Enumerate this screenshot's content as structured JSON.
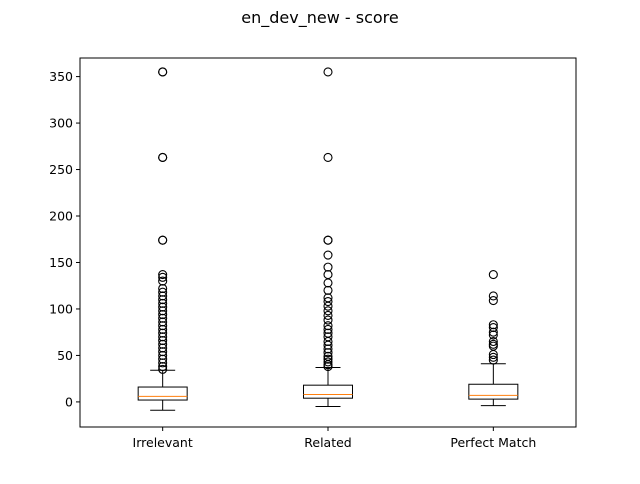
{
  "chart_data": {
    "type": "box",
    "title": "en_dev_new - score",
    "xlabel": "",
    "ylabel": "",
    "ylim": [
      -27,
      370
    ],
    "yticks": [
      0,
      50,
      100,
      150,
      200,
      250,
      300,
      350
    ],
    "grid": false,
    "colors": {
      "box": "#000000",
      "median": "#ff7f0e",
      "background": "#ffffff"
    },
    "categories": [
      "Irrelevant",
      "Related",
      "Perfect Match"
    ],
    "boxes": [
      {
        "category": "Irrelevant",
        "whisker_low": -9,
        "q1": 2,
        "median": 6,
        "q3": 16,
        "whisker_high": 34,
        "outliers": [
          355,
          355,
          263,
          263,
          174,
          174,
          137,
          134,
          130,
          122,
          118,
          114,
          110,
          106,
          102,
          98,
          94,
          90,
          86,
          82,
          78,
          74,
          70,
          66,
          62,
          58,
          54,
          50,
          46,
          42,
          38,
          35
        ]
      },
      {
        "category": "Related",
        "whisker_low": -5,
        "q1": 4,
        "median": 8,
        "q3": 18,
        "whisker_high": 37,
        "outliers": [
          355,
          263,
          174,
          174,
          158,
          145,
          137,
          128,
          120,
          112,
          108,
          103,
          98,
          93,
          88,
          82,
          78,
          74,
          70,
          65,
          61,
          57,
          53,
          49,
          46,
          43,
          40,
          38
        ]
      },
      {
        "category": "Perfect Match",
        "whisker_low": -4,
        "q1": 3,
        "median": 7,
        "q3": 19,
        "whisker_high": 41,
        "outliers": [
          137,
          114,
          109,
          83,
          80,
          75,
          72,
          65,
          62,
          60,
          51,
          48,
          45
        ]
      }
    ]
  }
}
